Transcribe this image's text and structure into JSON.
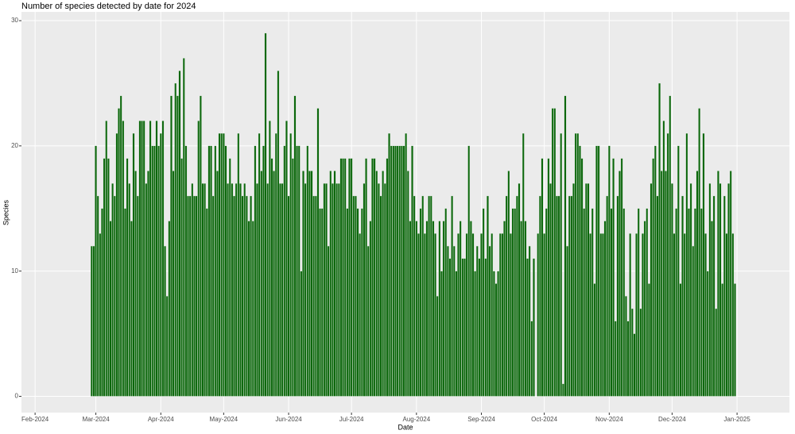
{
  "chart_data": {
    "type": "bar",
    "title": "Number of species detected by date for 2024",
    "x_label": "Date",
    "y_label": "Species",
    "x": [
      58,
      59,
      60,
      61,
      62,
      63,
      64,
      65,
      66,
      67,
      68,
      69,
      70,
      71,
      72,
      73,
      74,
      75,
      76,
      77,
      78,
      79,
      80,
      81,
      82,
      83,
      84,
      85,
      86,
      87,
      88,
      89,
      90,
      91,
      92,
      93,
      94,
      95,
      96,
      97,
      98,
      99,
      100,
      101,
      102,
      103,
      104,
      105,
      106,
      107,
      108,
      109,
      110,
      111,
      112,
      113,
      114,
      115,
      116,
      117,
      118,
      119,
      120,
      121,
      122,
      123,
      124,
      125,
      126,
      127,
      128,
      129,
      130,
      131,
      132,
      133,
      134,
      135,
      136,
      137,
      138,
      139,
      140,
      141,
      142,
      143,
      144,
      145,
      146,
      147,
      148,
      149,
      150,
      151,
      152,
      153,
      154,
      155,
      156,
      157,
      158,
      159,
      160,
      161,
      162,
      163,
      164,
      165,
      166,
      167,
      168,
      169,
      170,
      171,
      172,
      173,
      174,
      175,
      176,
      177,
      178,
      179,
      180,
      181,
      182,
      183,
      184,
      185,
      186,
      187,
      188,
      189,
      190,
      191,
      192,
      193,
      194,
      195,
      196,
      197,
      198,
      199,
      200,
      201,
      202,
      203,
      204,
      205,
      206,
      207,
      208,
      209,
      210,
      211,
      212,
      213,
      214,
      215,
      216,
      217,
      218,
      219,
      220,
      221,
      222,
      223,
      224,
      225,
      226,
      227,
      228,
      229,
      230,
      231,
      232,
      233,
      234,
      235,
      236,
      237,
      238,
      239,
      240,
      241,
      242,
      243,
      244,
      245,
      246,
      247,
      248,
      249,
      250,
      251,
      252,
      253,
      254,
      255,
      256,
      257,
      258,
      259,
      260,
      261,
      262,
      263,
      264,
      265,
      266,
      267,
      268,
      269,
      270,
      271,
      272,
      273,
      274,
      275,
      276,
      277,
      278,
      279,
      280,
      281,
      282,
      283,
      284,
      285,
      286,
      287,
      288,
      289,
      290,
      291,
      292,
      293,
      294,
      295,
      296,
      297,
      298,
      299,
      300,
      301,
      302,
      303,
      304,
      305,
      306,
      307,
      308,
      309,
      310,
      311,
      312,
      313,
      314,
      315,
      316,
      317,
      318,
      319,
      320,
      321,
      322,
      323,
      324,
      325,
      326,
      327,
      328,
      329,
      330,
      331,
      332,
      333,
      334,
      335,
      336,
      337,
      338,
      339,
      340,
      341,
      342,
      343,
      344,
      345,
      346,
      347,
      348,
      349,
      350,
      351,
      352,
      353,
      354,
      355,
      356,
      357,
      358,
      359,
      360,
      361,
      362,
      363,
      364,
      365
    ],
    "values": [
      12,
      12,
      20,
      16,
      13,
      15,
      19,
      22,
      19,
      14,
      17,
      16,
      21,
      23,
      24,
      22,
      15,
      19,
      17,
      14,
      21,
      18,
      16,
      22,
      22,
      22,
      17,
      18,
      22,
      20,
      20,
      22,
      20,
      21,
      22,
      12,
      8,
      14,
      24,
      18,
      25,
      24,
      26,
      19,
      27,
      20,
      16,
      16,
      17,
      16,
      16,
      22,
      24,
      17,
      17,
      15,
      20,
      20,
      16,
      20,
      18,
      21,
      21,
      21,
      20,
      17,
      19,
      17,
      16,
      17,
      21,
      17,
      16,
      17,
      16,
      14,
      16,
      14,
      20,
      17,
      21,
      18,
      20,
      29,
      17,
      22,
      19,
      18,
      21,
      26,
      17,
      17,
      20,
      22,
      16,
      21,
      19,
      24,
      20,
      20,
      10,
      18,
      17,
      20,
      18,
      18,
      16,
      16,
      23,
      15,
      15,
      17,
      17,
      12,
      18,
      17,
      18,
      17,
      17,
      19,
      19,
      19,
      15,
      19,
      19,
      16,
      16,
      15,
      13,
      15,
      17,
      19,
      12,
      14,
      19,
      19,
      18,
      17,
      16,
      18,
      17,
      19,
      21,
      20,
      20,
      20,
      20,
      20,
      20,
      20,
      21,
      18,
      14,
      20,
      16,
      14,
      13,
      15,
      16,
      13,
      14,
      16,
      16,
      14,
      13,
      8,
      14,
      10,
      14,
      15,
      12,
      11,
      16,
      12,
      10,
      13,
      14,
      11,
      11,
      13,
      20,
      14,
      13,
      10,
      12,
      11,
      13,
      15,
      11,
      16,
      12,
      13,
      10,
      9,
      10,
      13,
      13,
      14,
      16,
      18,
      13,
      15,
      15,
      16,
      17,
      14,
      21,
      14,
      11,
      12,
      6,
      11,
      null,
      13,
      16,
      19,
      13,
      15,
      19,
      17,
      23,
      23,
      16,
      16,
      21,
      1,
      24,
      12,
      16,
      16,
      17,
      21,
      21,
      20,
      19,
      15,
      17,
      17,
      13,
      15,
      9,
      20,
      20,
      13,
      13,
      14,
      16,
      20,
      15,
      19,
      6,
      16,
      18,
      19,
      15,
      8,
      6,
      13,
      7,
      5,
      13,
      15,
      7,
      13,
      14,
      15,
      9,
      17,
      19,
      20,
      16,
      25,
      18,
      22,
      18,
      21,
      24,
      17,
      13,
      15,
      20,
      9,
      16,
      13,
      21,
      15,
      17,
      12,
      15,
      18,
      23,
      15,
      21,
      13,
      10,
      17,
      14,
      16,
      7,
      18,
      17,
      9,
      16,
      13,
      17,
      18,
      13,
      9
    ],
    "color": "#0b670b",
    "xlim": [
      24.5,
      391
    ],
    "xticks": [
      {
        "value": 31,
        "label": "Feb-2024"
      },
      {
        "value": 60,
        "label": "Mar-2024"
      },
      {
        "value": 91,
        "label": "Apr-2024"
      },
      {
        "value": 121,
        "label": "May-2024"
      },
      {
        "value": 152,
        "label": "Jun-2024"
      },
      {
        "value": 182,
        "label": "Jul-2024"
      },
      {
        "value": 213,
        "label": "Aug-2024"
      },
      {
        "value": 244,
        "label": "Sep-2024"
      },
      {
        "value": 274,
        "label": "Oct-2024"
      },
      {
        "value": 305,
        "label": "Nov-2024"
      },
      {
        "value": 335,
        "label": "Dec-2024"
      },
      {
        "value": 366,
        "label": "Jan-2025"
      }
    ],
    "ylim": [
      -1.3,
      30.7
    ],
    "yticks": [
      0,
      10,
      20,
      30
    ],
    "grid": true
  }
}
